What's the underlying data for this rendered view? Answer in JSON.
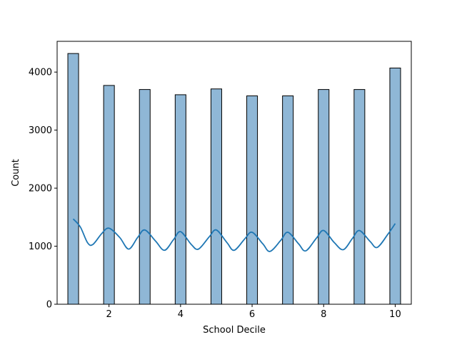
{
  "chart_data": {
    "type": "bar",
    "title": "",
    "xlabel": "School Decile",
    "ylabel": "Count",
    "xlim": [
      0.55,
      10.45
    ],
    "ylim": [
      0,
      4530
    ],
    "x_ticks": [
      2,
      4,
      6,
      8,
      10
    ],
    "y_ticks": [
      0,
      1000,
      2000,
      3000,
      4000
    ],
    "bin_width": 0.3,
    "bars": [
      {
        "x": 1,
        "value": 4320
      },
      {
        "x": 2,
        "value": 3770
      },
      {
        "x": 3,
        "value": 3700
      },
      {
        "x": 4,
        "value": 3610
      },
      {
        "x": 5,
        "value": 3710
      },
      {
        "x": 6,
        "value": 3590
      },
      {
        "x": 7,
        "value": 3590
      },
      {
        "x": 8,
        "value": 3700
      },
      {
        "x": 9,
        "value": 3700
      },
      {
        "x": 10,
        "value": 4070
      }
    ],
    "kde": {
      "x": [
        1.0,
        1.2,
        1.4,
        1.55,
        1.8,
        2.0,
        2.3,
        2.55,
        2.8,
        3.0,
        3.3,
        3.55,
        3.8,
        4.0,
        4.3,
        4.5,
        4.8,
        5.0,
        5.3,
        5.5,
        5.8,
        6.0,
        6.3,
        6.5,
        6.8,
        7.0,
        7.3,
        7.5,
        7.8,
        8.0,
        8.3,
        8.55,
        8.8,
        9.0,
        9.3,
        9.5,
        9.8,
        10.0
      ],
      "y": [
        1470,
        1330,
        1060,
        1030,
        1220,
        1310,
        1150,
        950,
        1150,
        1280,
        1090,
        930,
        1110,
        1250,
        1030,
        950,
        1160,
        1280,
        1060,
        930,
        1130,
        1240,
        1040,
        910,
        1100,
        1240,
        1040,
        920,
        1140,
        1270,
        1060,
        940,
        1130,
        1270,
        1080,
        980,
        1210,
        1390
      ]
    },
    "colors": {
      "bar_fill": "#8fb7d6",
      "bar_edge": "#000000",
      "kde_line": "#1f77b4",
      "axes": "#000000"
    },
    "grid": false,
    "legend": "none"
  }
}
